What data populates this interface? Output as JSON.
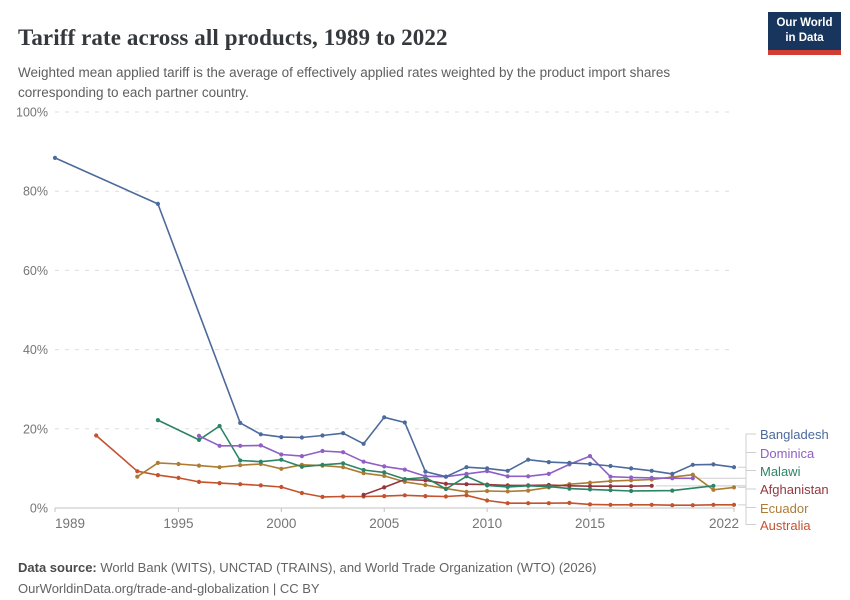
{
  "header": {
    "title": "Tariff rate across all products, 1989 to 2022",
    "subtitle": "Weighted mean applied tariff is the average of effectively applied rates weighted by the product import shares corresponding to each partner country.",
    "logo": {
      "line1": "Our World",
      "line2": "in Data"
    }
  },
  "footer": {
    "datasource_label": "Data source:",
    "datasource_text": " World Bank (WITS), UNCTAD (TRAINS), and World Trade Organization (WTO) (2026)",
    "note": "OurWorldinData.org/trade-and-globalization | CC BY"
  },
  "colors": {
    "grid": "#dddddd",
    "axis": "#c3c3c3",
    "tick_text": "#757575",
    "connector": "#cfcfcf",
    "logo_bg": "#18365d",
    "logo_stripe": "#d13d33"
  },
  "chart_data": {
    "type": "line",
    "title": "Tariff rate across all products, 1989 to 2022",
    "xlabel": "",
    "ylabel": "",
    "xlim": [
      1989,
      2022
    ],
    "ylim": [
      0,
      100
    ],
    "x_ticks": [
      1989,
      1995,
      2000,
      2005,
      2010,
      2015,
      2022
    ],
    "y_ticks": [
      0,
      20,
      40,
      60,
      80,
      100
    ],
    "y_tick_suffix": "%",
    "grid": "horizontal-dashed",
    "legend_position": "right",
    "series": [
      {
        "name": "Bangladesh",
        "color": "#4C6A9C",
        "points": [
          [
            1989,
            88.4
          ],
          [
            1994,
            76.8
          ],
          [
            1998,
            21.5
          ],
          [
            1999,
            18.6
          ],
          [
            2000,
            17.9
          ],
          [
            2001,
            17.8
          ],
          [
            2002,
            18.3
          ],
          [
            2003,
            18.9
          ],
          [
            2004,
            16.2
          ],
          [
            2005,
            22.9
          ],
          [
            2006,
            21.6
          ],
          [
            2007,
            9.2
          ],
          [
            2008,
            7.9
          ],
          [
            2009,
            10.3
          ],
          [
            2010,
            10.0
          ],
          [
            2011,
            9.4
          ],
          [
            2012,
            12.2
          ],
          [
            2013,
            11.6
          ],
          [
            2014,
            11.4
          ],
          [
            2015,
            11.1
          ],
          [
            2016,
            10.6
          ],
          [
            2017,
            10.0
          ],
          [
            2018,
            9.4
          ],
          [
            2019,
            8.6
          ],
          [
            2020,
            10.9
          ],
          [
            2021,
            11.0
          ],
          [
            2022,
            10.3
          ]
        ]
      },
      {
        "name": "Dominica",
        "color": "#8F5FC6",
        "points": [
          [
            1996,
            18.2
          ],
          [
            1997,
            15.7
          ],
          [
            1998,
            15.7
          ],
          [
            1999,
            15.8
          ],
          [
            2000,
            13.5
          ],
          [
            2001,
            13.1
          ],
          [
            2002,
            14.4
          ],
          [
            2003,
            14.1
          ],
          [
            2004,
            11.7
          ],
          [
            2005,
            10.5
          ],
          [
            2006,
            9.7
          ],
          [
            2007,
            8.0
          ],
          [
            2008,
            7.9
          ],
          [
            2009,
            8.6
          ],
          [
            2010,
            9.3
          ],
          [
            2011,
            8.0
          ],
          [
            2012,
            8.0
          ],
          [
            2013,
            8.6
          ],
          [
            2014,
            11.0
          ],
          [
            2015,
            13.1
          ],
          [
            2016,
            7.9
          ],
          [
            2017,
            7.7
          ],
          [
            2018,
            7.6
          ],
          [
            2019,
            7.5
          ],
          [
            2020,
            7.5
          ]
        ]
      },
      {
        "name": "Malawi",
        "color": "#2C8465",
        "points": [
          [
            1994,
            22.2
          ],
          [
            1996,
            17.2
          ],
          [
            1997,
            20.7
          ],
          [
            1998,
            12.0
          ],
          [
            1999,
            11.7
          ],
          [
            2000,
            12.2
          ],
          [
            2001,
            10.4
          ],
          [
            2002,
            10.9
          ],
          [
            2003,
            11.3
          ],
          [
            2004,
            9.6
          ],
          [
            2005,
            9.0
          ],
          [
            2006,
            7.3
          ],
          [
            2007,
            7.7
          ],
          [
            2008,
            4.8
          ],
          [
            2009,
            8.0
          ],
          [
            2010,
            5.7
          ],
          [
            2011,
            5.3
          ],
          [
            2012,
            5.6
          ],
          [
            2013,
            5.4
          ],
          [
            2014,
            4.9
          ],
          [
            2015,
            4.7
          ],
          [
            2016,
            4.5
          ],
          [
            2017,
            4.3
          ],
          [
            2019,
            4.4
          ],
          [
            2021,
            5.6
          ]
        ]
      },
      {
        "name": "Afghanistan",
        "color": "#95363D",
        "points": [
          [
            2004,
            3.3
          ],
          [
            2005,
            5.2
          ],
          [
            2006,
            7.2
          ],
          [
            2007,
            7.0
          ],
          [
            2008,
            6.1
          ],
          [
            2009,
            6.0
          ],
          [
            2010,
            5.9
          ],
          [
            2011,
            5.7
          ],
          [
            2012,
            5.7
          ],
          [
            2013,
            5.8
          ],
          [
            2014,
            5.6
          ],
          [
            2015,
            5.5
          ],
          [
            2016,
            5.5
          ],
          [
            2017,
            5.5
          ],
          [
            2018,
            5.6
          ]
        ]
      },
      {
        "name": "Ecuador",
        "color": "#AC7C34",
        "points": [
          [
            1993,
            7.9
          ],
          [
            1994,
            11.4
          ],
          [
            1995,
            11.1
          ],
          [
            1996,
            10.7
          ],
          [
            1997,
            10.3
          ],
          [
            1998,
            10.8
          ],
          [
            1999,
            11.1
          ],
          [
            2000,
            9.9
          ],
          [
            2001,
            10.9
          ],
          [
            2002,
            10.7
          ],
          [
            2003,
            10.3
          ],
          [
            2004,
            8.8
          ],
          [
            2005,
            8.1
          ],
          [
            2006,
            6.6
          ],
          [
            2007,
            5.8
          ],
          [
            2008,
            4.9
          ],
          [
            2009,
            4.1
          ],
          [
            2010,
            4.3
          ],
          [
            2011,
            4.2
          ],
          [
            2012,
            4.4
          ],
          [
            2013,
            5.2
          ],
          [
            2014,
            6.0
          ],
          [
            2015,
            6.4
          ],
          [
            2016,
            6.8
          ],
          [
            2017,
            7.0
          ],
          [
            2018,
            7.2
          ],
          [
            2019,
            7.8
          ],
          [
            2020,
            8.4
          ],
          [
            2021,
            4.6
          ],
          [
            2022,
            5.2
          ]
        ]
      },
      {
        "name": "Australia",
        "color": "#C4532D",
        "points": [
          [
            1991,
            18.3
          ],
          [
            1993,
            9.3
          ],
          [
            1994,
            8.3
          ],
          [
            1995,
            7.6
          ],
          [
            1996,
            6.6
          ],
          [
            1997,
            6.3
          ],
          [
            1998,
            6.0
          ],
          [
            1999,
            5.7
          ],
          [
            2000,
            5.3
          ],
          [
            2001,
            3.8
          ],
          [
            2002,
            2.8
          ],
          [
            2003,
            2.9
          ],
          [
            2004,
            2.9
          ],
          [
            2005,
            3.0
          ],
          [
            2006,
            3.2
          ],
          [
            2007,
            3.0
          ],
          [
            2008,
            2.9
          ],
          [
            2009,
            3.2
          ],
          [
            2010,
            1.9
          ],
          [
            2011,
            1.2
          ],
          [
            2012,
            1.2
          ],
          [
            2013,
            1.2
          ],
          [
            2014,
            1.3
          ],
          [
            2015,
            0.9
          ],
          [
            2016,
            0.8
          ],
          [
            2017,
            0.8
          ],
          [
            2018,
            0.8
          ],
          [
            2019,
            0.7
          ],
          [
            2020,
            0.7
          ],
          [
            2021,
            0.8
          ],
          [
            2022,
            0.8
          ]
        ]
      }
    ]
  }
}
